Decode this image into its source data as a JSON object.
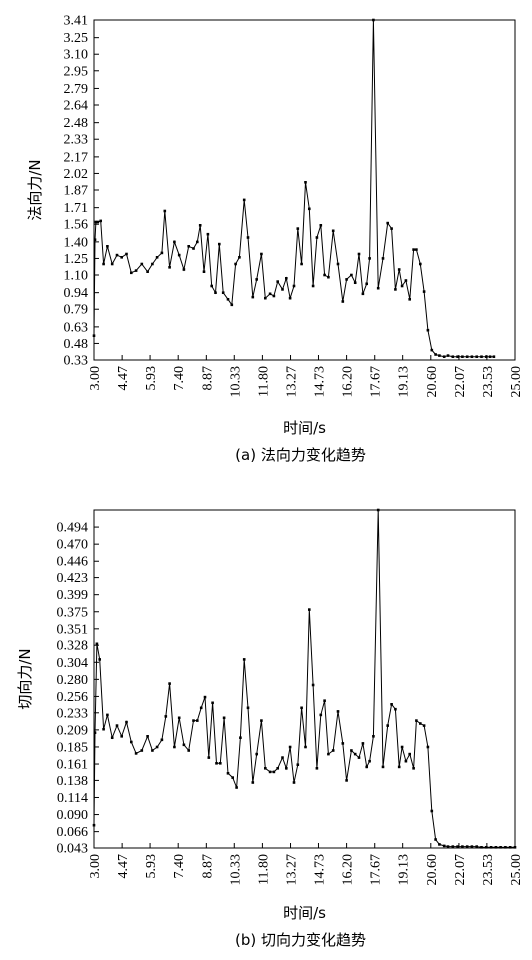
{
  "chart_data": [
    {
      "type": "line",
      "xlabel": "时间/s",
      "ylabel": "法向力/N",
      "caption": "(a) 法向力变化趋势",
      "xlim": [
        3.0,
        25.0
      ],
      "ylim": [
        0.33,
        3.41
      ],
      "x_ticks": [
        "3.00",
        "4.47",
        "5.93",
        "7.40",
        "8.87",
        "10.33",
        "11.80",
        "13.27",
        "14.73",
        "16.20",
        "17.67",
        "19.13",
        "20.60",
        "22.07",
        "23.53",
        "25.00"
      ],
      "y_ticks": [
        "0.33",
        "0.48",
        "0.63",
        "0.79",
        "0.94",
        "1.10",
        "1.25",
        "1.40",
        "1.56",
        "1.71",
        "1.87",
        "2.02",
        "2.17",
        "2.33",
        "2.48",
        "2.64",
        "2.79",
        "2.95",
        "3.10",
        "3.25",
        "3.41"
      ],
      "grid": false,
      "series": [
        {
          "x": [
            3.0,
            3.05,
            3.1,
            3.2,
            3.35,
            3.5,
            3.7,
            3.95,
            4.2,
            4.45,
            4.7,
            4.95,
            5.2,
            5.5,
            5.8,
            6.05,
            6.3,
            6.55,
            6.7,
            6.95,
            7.2,
            7.45,
            7.7,
            7.95,
            8.2,
            8.4,
            8.55,
            8.75,
            8.95,
            9.15,
            9.35,
            9.55,
            9.75,
            10.0,
            10.2,
            10.4,
            10.6,
            10.85,
            11.05,
            11.3,
            11.5,
            11.75,
            11.95,
            12.2,
            12.4,
            12.6,
            12.85,
            13.05,
            13.25,
            13.45,
            13.65,
            13.85,
            14.05,
            14.25,
            14.45,
            14.65,
            14.85,
            15.05,
            15.25,
            15.5,
            15.75,
            16.0,
            16.2,
            16.45,
            16.65,
            16.85,
            17.05,
            17.25,
            17.4,
            17.6,
            17.85,
            18.1,
            18.35,
            18.55,
            18.75,
            18.95,
            19.1,
            19.3,
            19.5,
            19.7,
            19.85,
            20.05,
            20.25,
            20.45,
            20.65,
            20.85,
            21.05,
            21.3,
            21.5,
            21.75,
            22.0,
            22.25,
            22.5,
            22.75,
            23.0,
            23.25,
            23.5,
            23.7,
            23.9
          ],
          "y": [
            0.55,
            1.42,
            1.58,
            1.58,
            1.59,
            1.2,
            1.36,
            1.2,
            1.28,
            1.26,
            1.29,
            1.12,
            1.14,
            1.2,
            1.13,
            1.2,
            1.26,
            1.3,
            1.68,
            1.17,
            1.4,
            1.28,
            1.15,
            1.36,
            1.34,
            1.4,
            1.55,
            1.13,
            1.47,
            1.0,
            0.94,
            1.38,
            0.94,
            0.88,
            0.83,
            1.2,
            1.26,
            1.78,
            1.44,
            0.9,
            1.06,
            1.29,
            0.89,
            0.93,
            0.91,
            1.04,
            0.97,
            1.07,
            0.89,
            1.0,
            1.52,
            1.2,
            1.94,
            1.7,
            1.0,
            1.44,
            1.55,
            1.1,
            1.08,
            1.5,
            1.2,
            0.86,
            1.06,
            1.1,
            1.03,
            1.29,
            0.93,
            1.02,
            1.25,
            3.41,
            0.98,
            1.25,
            1.57,
            1.52,
            0.97,
            1.15,
            1.0,
            1.05,
            0.88,
            1.33,
            1.33,
            1.2,
            0.95,
            0.6,
            0.42,
            0.38,
            0.37,
            0.36,
            0.37,
            0.36,
            0.36,
            0.36,
            0.36,
            0.36,
            0.36,
            0.36,
            0.36,
            0.36,
            0.36
          ]
        }
      ]
    },
    {
      "type": "line",
      "xlabel": "时间/s",
      "ylabel": "切向力/N",
      "caption": "(b) 切向力变化趋势",
      "xlim": [
        3.0,
        25.0
      ],
      "ylim": [
        0.043,
        0.518
      ],
      "x_ticks": [
        "3.00",
        "4.47",
        "5.93",
        "7.40",
        "8.87",
        "10.33",
        "11.80",
        "13.27",
        "14.73",
        "16.20",
        "17.67",
        "19.13",
        "20.60",
        "22.07",
        "23.53",
        "25.00"
      ],
      "y_ticks": [
        "0.043",
        "0.066",
        "0.090",
        "0.114",
        "0.138",
        "0.161",
        "0.185",
        "0.209",
        "0.233",
        "0.256",
        "0.280",
        "0.304",
        "0.328",
        "0.351",
        "0.375",
        "0.399",
        "0.423",
        "0.446",
        "0.470",
        "0.494"
      ],
      "grid": false,
      "series": [
        {
          "x": [
            3.0,
            3.05,
            3.15,
            3.3,
            3.5,
            3.7,
            3.95,
            4.2,
            4.45,
            4.7,
            4.95,
            5.2,
            5.5,
            5.8,
            6.05,
            6.3,
            6.55,
            6.75,
            6.95,
            7.2,
            7.45,
            7.7,
            7.95,
            8.2,
            8.4,
            8.6,
            8.8,
            9.0,
            9.2,
            9.4,
            9.6,
            9.8,
            10.0,
            10.25,
            10.45,
            10.65,
            10.85,
            11.05,
            11.3,
            11.5,
            11.75,
            11.95,
            12.2,
            12.4,
            12.6,
            12.85,
            13.05,
            13.25,
            13.45,
            13.65,
            13.85,
            14.05,
            14.25,
            14.45,
            14.65,
            14.85,
            15.05,
            15.25,
            15.5,
            15.75,
            16.0,
            16.2,
            16.45,
            16.65,
            16.85,
            17.05,
            17.25,
            17.4,
            17.6,
            17.85,
            18.1,
            18.35,
            18.55,
            18.75,
            18.95,
            19.1,
            19.3,
            19.5,
            19.7,
            19.85,
            20.05,
            20.25,
            20.45,
            20.65,
            20.85,
            21.05,
            21.3,
            21.5,
            21.75,
            22.0,
            22.25,
            22.5,
            22.75,
            23.0,
            23.25,
            23.5,
            23.75,
            24.0,
            24.25,
            24.5,
            24.75,
            25.0
          ],
          "y": [
            0.075,
            0.205,
            0.33,
            0.308,
            0.21,
            0.23,
            0.198,
            0.215,
            0.2,
            0.22,
            0.192,
            0.176,
            0.18,
            0.2,
            0.18,
            0.185,
            0.195,
            0.228,
            0.274,
            0.185,
            0.226,
            0.188,
            0.18,
            0.222,
            0.222,
            0.24,
            0.255,
            0.17,
            0.247,
            0.162,
            0.162,
            0.226,
            0.148,
            0.142,
            0.128,
            0.198,
            0.308,
            0.24,
            0.135,
            0.175,
            0.222,
            0.155,
            0.15,
            0.15,
            0.155,
            0.17,
            0.155,
            0.185,
            0.135,
            0.16,
            0.24,
            0.185,
            0.378,
            0.272,
            0.155,
            0.23,
            0.25,
            0.175,
            0.18,
            0.235,
            0.19,
            0.138,
            0.18,
            0.175,
            0.17,
            0.19,
            0.157,
            0.165,
            0.2,
            0.518,
            0.157,
            0.215,
            0.245,
            0.238,
            0.157,
            0.185,
            0.165,
            0.175,
            0.155,
            0.222,
            0.218,
            0.215,
            0.185,
            0.095,
            0.055,
            0.048,
            0.046,
            0.045,
            0.045,
            0.045,
            0.045,
            0.045,
            0.045,
            0.045,
            0.044,
            0.044,
            0.044,
            0.044,
            0.044,
            0.044,
            0.044,
            0.044
          ]
        }
      ]
    }
  ]
}
